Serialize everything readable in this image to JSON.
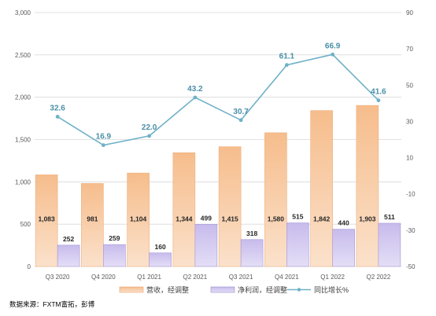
{
  "chart_data": {
    "type": "bar",
    "categories": [
      "Q3 2020",
      "Q4 2020",
      "Q1 2021",
      "Q2 2021",
      "Q3 2021",
      "Q4 2021",
      "Q1 2022",
      "Q2 2022"
    ],
    "series": [
      {
        "name": "营收，经调整",
        "type": "bar",
        "axis": "left",
        "values": [
          1083,
          981,
          1104,
          1344,
          1415,
          1580,
          1842,
          1903
        ]
      },
      {
        "name": "净利润，经调整",
        "type": "bar",
        "axis": "left",
        "values": [
          252,
          259,
          160,
          499,
          318,
          515,
          440,
          511
        ]
      },
      {
        "name": "同比增长%",
        "type": "line",
        "axis": "right",
        "values": [
          32.6,
          16.9,
          22.0,
          43.2,
          30.7,
          61.1,
          66.9,
          41.6
        ]
      }
    ],
    "data_labels": {
      "revenue": [
        "1,083",
        "981",
        "1,104",
        "1,344",
        "1,415",
        "1,580",
        "1,842",
        "1,903"
      ],
      "profit": [
        "252",
        "259",
        "160",
        "499",
        "318",
        "515",
        "440",
        "511"
      ],
      "growth": [
        "32.6",
        "16.9",
        "22.0",
        "43.2",
        "30.7",
        "61.1",
        "66.9",
        "41.6"
      ]
    },
    "ylim_left": [
      0,
      3000
    ],
    "yticks_left": [
      "0",
      "500",
      "1,000",
      "1,500",
      "2,000",
      "2,500",
      "3,000"
    ],
    "ylim_right": [
      -50,
      90
    ],
    "yticks_right": [
      "-50",
      "-30",
      "-10",
      "10",
      "30",
      "50",
      "70",
      "90"
    ],
    "grid": true,
    "legend_position": "bottom",
    "colors": {
      "revenue": "#f8c9a0",
      "profit": "#d2c8ee",
      "growth": "#6fb1c7",
      "growth_label": "#4a8fa8",
      "grid": "#d9d9d9"
    }
  },
  "legend": {
    "revenue": "营收，经调整",
    "profit": "净利润，经调整",
    "growth": "同比增长%"
  },
  "source": "数据来源：FXTM富拓，彭博"
}
